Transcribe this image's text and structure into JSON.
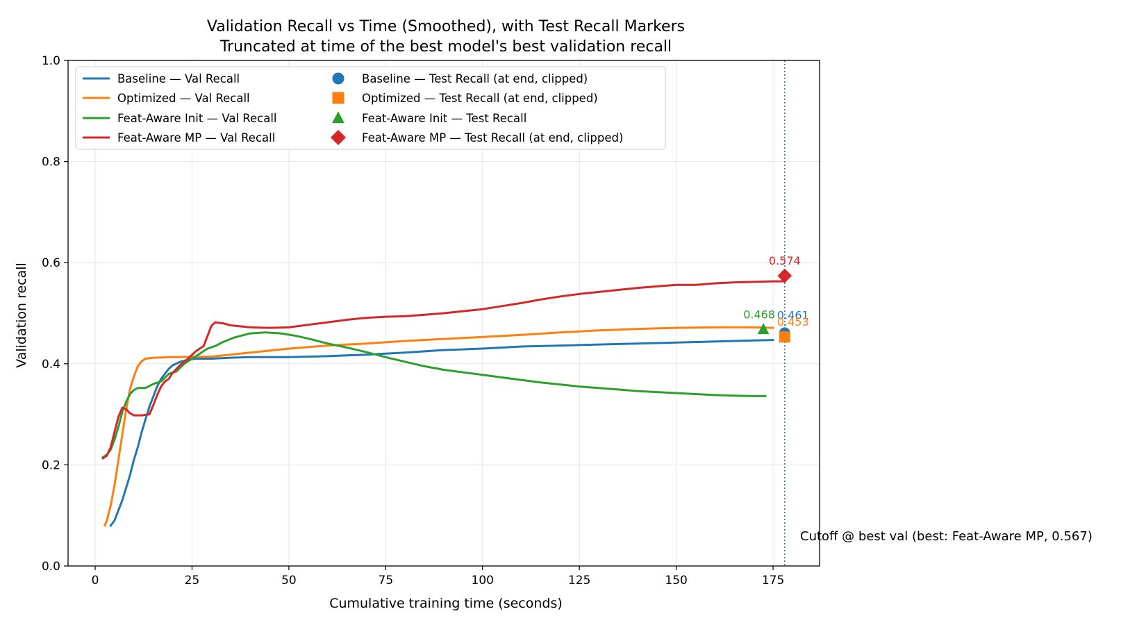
{
  "chart_data": {
    "type": "line",
    "title": "Validation Recall vs Time (Smoothed), with Test Recall Markers",
    "subtitle": "Truncated at time of the best model's best validation recall",
    "xlabel": "Cumulative training time (seconds)",
    "ylabel": "Validation recall",
    "xlim": [
      -7,
      187
    ],
    "ylim": [
      0.0,
      1.0
    ],
    "x_ticks": [
      0,
      25,
      50,
      75,
      100,
      125,
      150,
      175
    ],
    "y_ticks": [
      0.0,
      0.2,
      0.4,
      0.6,
      0.8,
      1.0
    ],
    "x_tick_labels": [
      "0",
      "25",
      "50",
      "75",
      "100",
      "125",
      "150",
      "175"
    ],
    "y_tick_labels": [
      "0.0",
      "0.2",
      "0.4",
      "0.6",
      "0.8",
      "1.0"
    ],
    "grid": true,
    "legend_position": "top-left",
    "series": [
      {
        "name": "Baseline — Val Recall",
        "color": "#1f77b4",
        "points": [
          [
            4,
            0.08
          ],
          [
            5,
            0.09
          ],
          [
            6,
            0.11
          ],
          [
            7,
            0.13
          ],
          [
            8,
            0.155
          ],
          [
            9,
            0.18
          ],
          [
            10,
            0.21
          ],
          [
            11,
            0.235
          ],
          [
            12,
            0.265
          ],
          [
            13,
            0.29
          ],
          [
            14,
            0.315
          ],
          [
            15,
            0.335
          ],
          [
            16,
            0.355
          ],
          [
            17,
            0.37
          ],
          [
            18,
            0.38
          ],
          [
            19,
            0.39
          ],
          [
            20,
            0.397
          ],
          [
            22,
            0.404
          ],
          [
            24,
            0.408
          ],
          [
            26,
            0.41
          ],
          [
            30,
            0.41
          ],
          [
            35,
            0.412
          ],
          [
            40,
            0.413
          ],
          [
            50,
            0.413
          ],
          [
            60,
            0.415
          ],
          [
            70,
            0.418
          ],
          [
            80,
            0.422
          ],
          [
            90,
            0.427
          ],
          [
            100,
            0.43
          ],
          [
            110,
            0.434
          ],
          [
            120,
            0.436
          ],
          [
            130,
            0.438
          ],
          [
            140,
            0.44
          ],
          [
            150,
            0.442
          ],
          [
            160,
            0.444
          ],
          [
            170,
            0.446
          ],
          [
            175,
            0.447
          ]
        ]
      },
      {
        "name": "Optimized — Val Recall",
        "color": "#ff7f0e",
        "points": [
          [
            2.5,
            0.08
          ],
          [
            3,
            0.09
          ],
          [
            4,
            0.12
          ],
          [
            5,
            0.16
          ],
          [
            6,
            0.21
          ],
          [
            7,
            0.26
          ],
          [
            8,
            0.31
          ],
          [
            9,
            0.35
          ],
          [
            10,
            0.375
          ],
          [
            11,
            0.395
          ],
          [
            12,
            0.405
          ],
          [
            13,
            0.41
          ],
          [
            15,
            0.412
          ],
          [
            20,
            0.413
          ],
          [
            30,
            0.414
          ],
          [
            40,
            0.422
          ],
          [
            50,
            0.43
          ],
          [
            60,
            0.436
          ],
          [
            70,
            0.44
          ],
          [
            80,
            0.445
          ],
          [
            90,
            0.449
          ],
          [
            100,
            0.453
          ],
          [
            110,
            0.457
          ],
          [
            120,
            0.462
          ],
          [
            130,
            0.466
          ],
          [
            140,
            0.469
          ],
          [
            150,
            0.471
          ],
          [
            160,
            0.472
          ],
          [
            170,
            0.472
          ],
          [
            175,
            0.471
          ]
        ]
      },
      {
        "name": "Feat-Aware Init — Val Recall",
        "color": "#2ca02c",
        "points": [
          [
            2,
            0.215
          ],
          [
            3,
            0.22
          ],
          [
            4,
            0.23
          ],
          [
            5,
            0.25
          ],
          [
            6,
            0.275
          ],
          [
            7,
            0.305
          ],
          [
            8,
            0.325
          ],
          [
            9,
            0.34
          ],
          [
            10,
            0.348
          ],
          [
            11,
            0.352
          ],
          [
            13,
            0.352
          ],
          [
            15,
            0.36
          ],
          [
            17,
            0.365
          ],
          [
            19,
            0.38
          ],
          [
            21,
            0.385
          ],
          [
            23,
            0.4
          ],
          [
            25,
            0.41
          ],
          [
            27,
            0.42
          ],
          [
            29,
            0.43
          ],
          [
            31,
            0.435
          ],
          [
            33,
            0.443
          ],
          [
            36,
            0.452
          ],
          [
            40,
            0.46
          ],
          [
            44,
            0.462
          ],
          [
            48,
            0.46
          ],
          [
            52,
            0.455
          ],
          [
            56,
            0.448
          ],
          [
            60,
            0.44
          ],
          [
            65,
            0.432
          ],
          [
            70,
            0.423
          ],
          [
            75,
            0.413
          ],
          [
            80,
            0.404
          ],
          [
            85,
            0.395
          ],
          [
            90,
            0.388
          ],
          [
            95,
            0.383
          ],
          [
            100,
            0.378
          ],
          [
            105,
            0.373
          ],
          [
            110,
            0.368
          ],
          [
            115,
            0.363
          ],
          [
            120,
            0.359
          ],
          [
            125,
            0.355
          ],
          [
            130,
            0.352
          ],
          [
            135,
            0.349
          ],
          [
            140,
            0.346
          ],
          [
            145,
            0.344
          ],
          [
            150,
            0.342
          ],
          [
            155,
            0.34
          ],
          [
            160,
            0.338
          ],
          [
            165,
            0.337
          ],
          [
            170,
            0.336
          ],
          [
            173,
            0.336
          ]
        ]
      },
      {
        "name": "Feat-Aware MP — Val Recall",
        "color": "#d62728",
        "points": [
          [
            2,
            0.213
          ],
          [
            3,
            0.218
          ],
          [
            4,
            0.235
          ],
          [
            5,
            0.265
          ],
          [
            6,
            0.295
          ],
          [
            7,
            0.313
          ],
          [
            8,
            0.31
          ],
          [
            9,
            0.302
          ],
          [
            10,
            0.298
          ],
          [
            12,
            0.298
          ],
          [
            14,
            0.3
          ],
          [
            15,
            0.318
          ],
          [
            16,
            0.338
          ],
          [
            17,
            0.355
          ],
          [
            18,
            0.365
          ],
          [
            19,
            0.37
          ],
          [
            20,
            0.382
          ],
          [
            21,
            0.39
          ],
          [
            22,
            0.398
          ],
          [
            24,
            0.41
          ],
          [
            26,
            0.425
          ],
          [
            28,
            0.435
          ],
          [
            29,
            0.455
          ],
          [
            30,
            0.475
          ],
          [
            31,
            0.482
          ],
          [
            33,
            0.48
          ],
          [
            35,
            0.476
          ],
          [
            40,
            0.472
          ],
          [
            45,
            0.471
          ],
          [
            50,
            0.472
          ],
          [
            55,
            0.477
          ],
          [
            60,
            0.482
          ],
          [
            65,
            0.487
          ],
          [
            70,
            0.491
          ],
          [
            75,
            0.493
          ],
          [
            80,
            0.494
          ],
          [
            85,
            0.497
          ],
          [
            90,
            0.5
          ],
          [
            95,
            0.504
          ],
          [
            100,
            0.508
          ],
          [
            105,
            0.514
          ],
          [
            110,
            0.52
          ],
          [
            115,
            0.527
          ],
          [
            120,
            0.533
          ],
          [
            125,
            0.538
          ],
          [
            130,
            0.542
          ],
          [
            135,
            0.546
          ],
          [
            140,
            0.55
          ],
          [
            145,
            0.553
          ],
          [
            150,
            0.556
          ],
          [
            155,
            0.556
          ],
          [
            160,
            0.559
          ],
          [
            165,
            0.561
          ],
          [
            170,
            0.562
          ],
          [
            175,
            0.563
          ],
          [
            178,
            0.563
          ]
        ]
      }
    ],
    "markers": [
      {
        "name": "Baseline — Test Recall (at end, clipped)",
        "color": "#1f77b4",
        "shape": "circle",
        "x": 178,
        "y": 0.461,
        "label": "0.461"
      },
      {
        "name": "Optimized — Test Recall (at end, clipped)",
        "color": "#ff7f0e",
        "shape": "square",
        "x": 178,
        "y": 0.453,
        "label": "0.453"
      },
      {
        "name": "Feat-Aware Init — Test Recall",
        "color": "#2ca02c",
        "shape": "triangle",
        "x": 172.5,
        "y": 0.468,
        "label": "0.468"
      },
      {
        "name": "Feat-Aware MP — Test Recall (at end, clipped)",
        "color": "#d62728",
        "shape": "diamond",
        "x": 178,
        "y": 0.574,
        "label": "0.574"
      }
    ],
    "cutoff": {
      "x": 178,
      "label": "Cutoff @ best val (best: Feat-Aware MP, 0.567)",
      "color": "#1f77b4"
    },
    "colors": {
      "grid": "#e6e6e6",
      "axis": "#000000",
      "legend_border": "#cccccc"
    }
  }
}
